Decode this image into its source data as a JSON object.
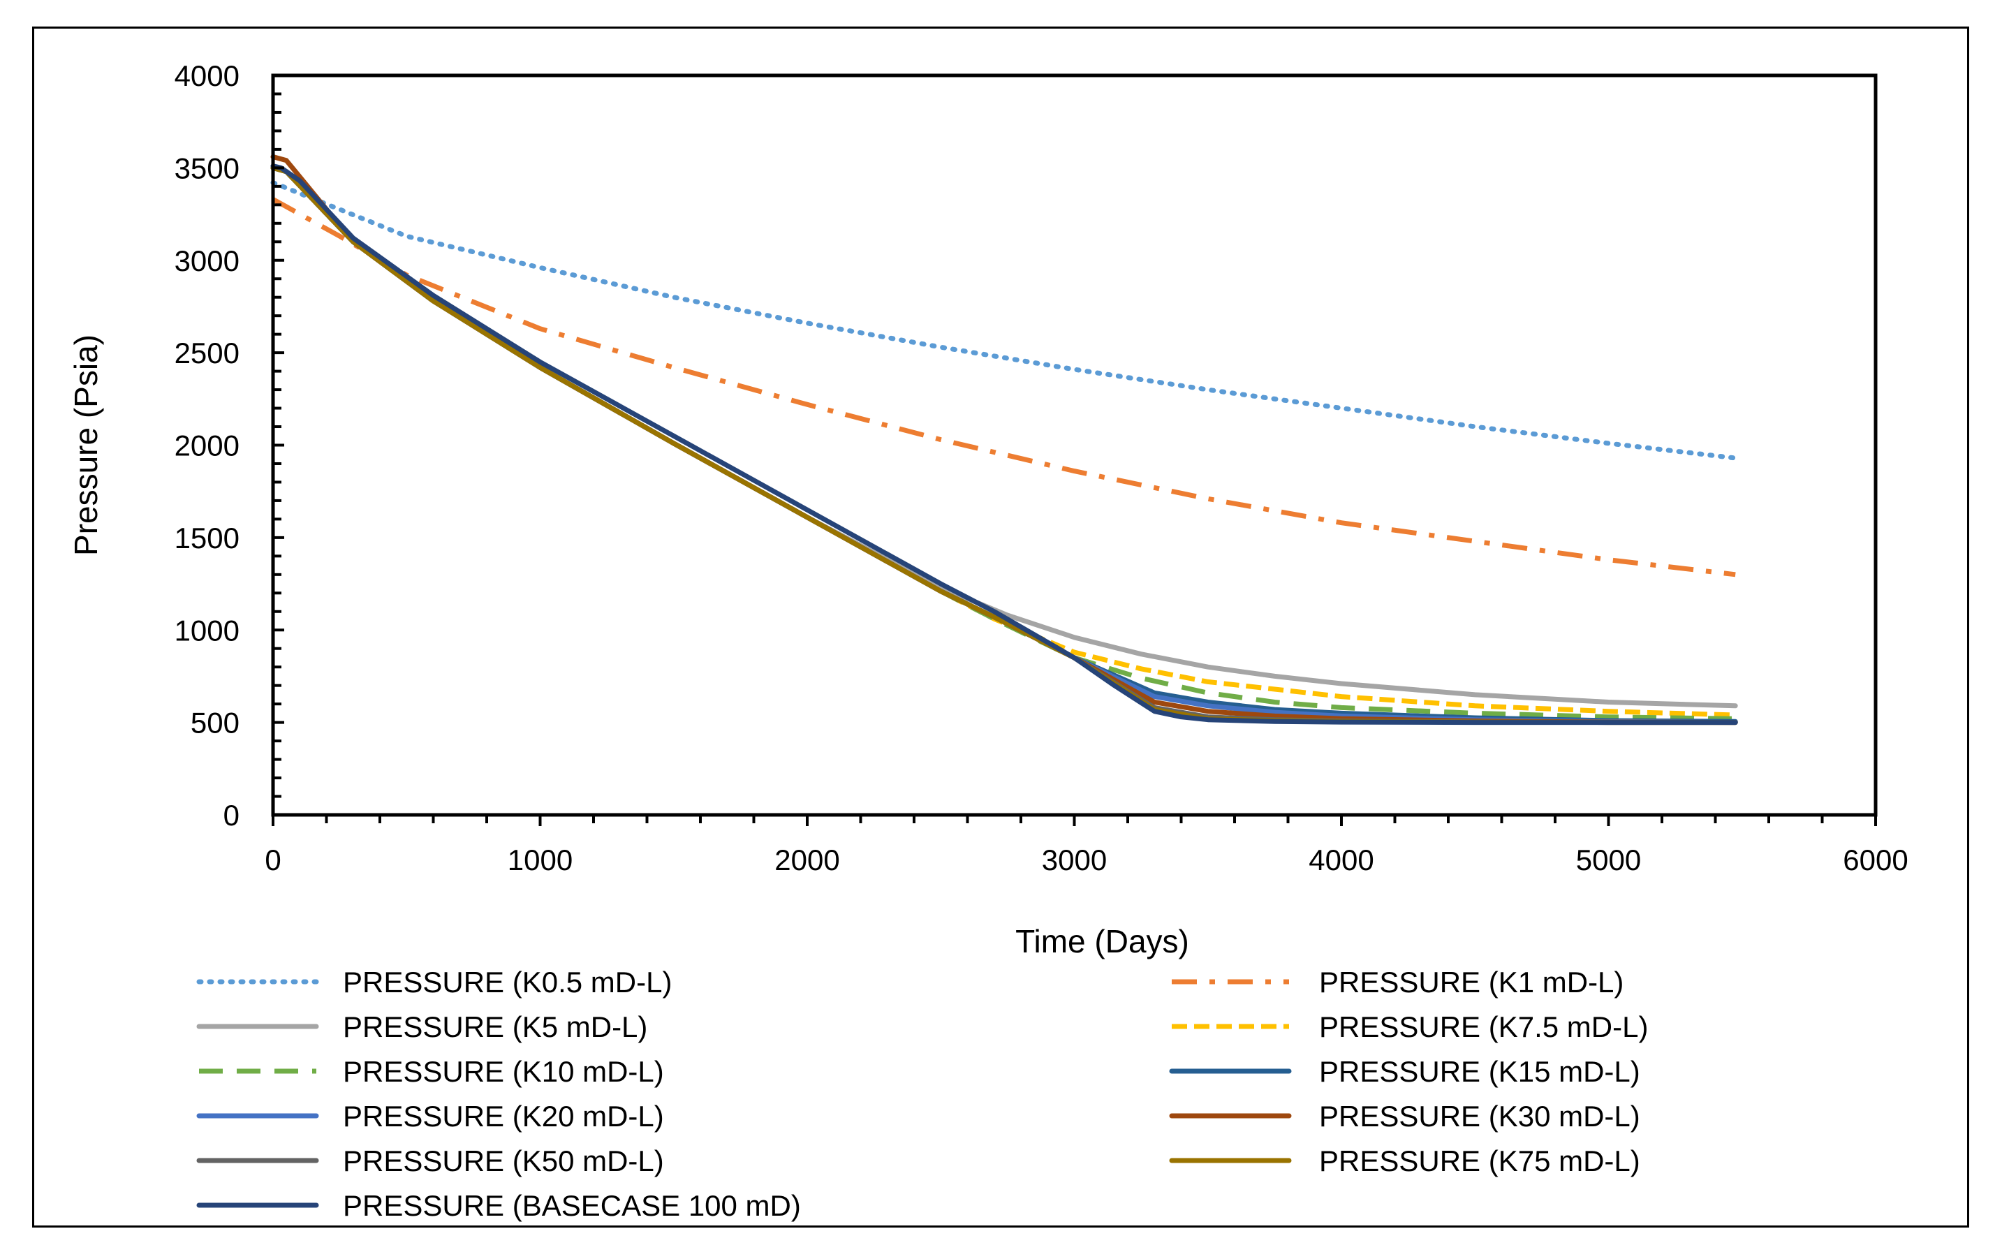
{
  "chart_data": {
    "type": "line",
    "title": "",
    "xlabel": "Time (Days)",
    "ylabel": "Pressure (Psia)",
    "xlim": [
      0,
      6000
    ],
    "ylim": [
      0,
      4000
    ],
    "x_ticks": [
      "0",
      "1000",
      "2000",
      "3000",
      "4000",
      "5000",
      "6000"
    ],
    "y_ticks": [
      "0",
      "500",
      "1000",
      "1500",
      "2000",
      "2500",
      "3000",
      "3500",
      "4000"
    ],
    "grid": false,
    "legend_position": "bottom",
    "series": [
      {
        "name": "PRESSURE (K0.5 mD-L)",
        "color": "#5B9BD5",
        "style": "dotted",
        "x": [
          0,
          500,
          1000,
          1500,
          2000,
          2500,
          3000,
          3500,
          4000,
          4500,
          5000,
          5475
        ],
        "y": [
          3420,
          3130,
          2960,
          2800,
          2660,
          2530,
          2410,
          2300,
          2200,
          2100,
          2010,
          1930
        ]
      },
      {
        "name": "PRESSURE  (K1 mD-L)",
        "color": "#ED7D31",
        "style": "dashdot",
        "x": [
          0,
          250,
          500,
          1000,
          1500,
          2000,
          2500,
          3000,
          3500,
          4000,
          4500,
          5000,
          5475
        ],
        "y": [
          3330,
          3130,
          2920,
          2630,
          2420,
          2220,
          2030,
          1860,
          1710,
          1580,
          1480,
          1380,
          1300
        ]
      },
      {
        "name": "PRESSURE (K5 mD-L)",
        "color": "#A5A5A5",
        "style": "solid",
        "x": [
          0,
          50,
          300,
          600,
          1000,
          1500,
          2000,
          2500,
          2750,
          3000,
          3250,
          3500,
          3750,
          4000,
          4500,
          5000,
          5475
        ],
        "y": [
          3500,
          3480,
          3100,
          2780,
          2420,
          2010,
          1610,
          1230,
          1080,
          960,
          870,
          800,
          750,
          710,
          650,
          610,
          590
        ]
      },
      {
        "name": "PRESSURE (K7.5 mD-L)",
        "color": "#FFC000",
        "style": "dashed",
        "x": [
          0,
          50,
          300,
          600,
          1000,
          1500,
          2000,
          2500,
          2700,
          3000,
          3250,
          3500,
          3750,
          4000,
          4500,
          5000,
          5475
        ],
        "y": [
          3500,
          3480,
          3100,
          2780,
          2420,
          2010,
          1610,
          1210,
          1060,
          880,
          790,
          720,
          680,
          640,
          590,
          560,
          540
        ]
      },
      {
        "name": "PRESSURE (K10 mD-L)",
        "color": "#70AD47",
        "style": "longdash",
        "x": [
          0,
          50,
          300,
          600,
          1000,
          1500,
          2000,
          2500,
          2700,
          3000,
          3250,
          3500,
          3750,
          4000,
          4500,
          5000,
          5475
        ],
        "y": [
          3500,
          3480,
          3100,
          2780,
          2420,
          2010,
          1610,
          1210,
          1060,
          850,
          740,
          660,
          610,
          580,
          550,
          530,
          520
        ]
      },
      {
        "name": "PRESSURE (K15 mD-L)",
        "color": "#255E91",
        "style": "solid",
        "x": [
          0,
          50,
          300,
          600,
          1000,
          1500,
          2000,
          2500,
          2700,
          3000,
          3300,
          3500,
          3750,
          4000,
          4500,
          5000,
          5475
        ],
        "y": [
          3500,
          3480,
          3100,
          2780,
          2420,
          2010,
          1610,
          1210,
          1070,
          850,
          660,
          610,
          570,
          550,
          525,
          510,
          505
        ]
      },
      {
        "name": "PRESSURE (K20 mD-L)",
        "color": "#4472C4",
        "style": "solid",
        "x": [
          0,
          50,
          300,
          600,
          1000,
          1500,
          2000,
          2500,
          2700,
          3000,
          3300,
          3500,
          3750,
          4000,
          4500,
          5000,
          5475
        ],
        "y": [
          3500,
          3480,
          3100,
          2780,
          2420,
          2010,
          1610,
          1210,
          1070,
          850,
          640,
          590,
          555,
          535,
          515,
          505,
          500
        ]
      },
      {
        "name": "PRESSURE (K30 mD-L)",
        "color": "#9E480E",
        "style": "solid",
        "x": [
          0,
          50,
          300,
          600,
          1000,
          1500,
          2000,
          2500,
          2700,
          3000,
          3300,
          3500,
          3750,
          4000,
          4500,
          5000,
          5475
        ],
        "y": [
          3560,
          3540,
          3100,
          2780,
          2420,
          2010,
          1610,
          1210,
          1070,
          850,
          610,
          560,
          535,
          520,
          508,
          502,
          500
        ]
      },
      {
        "name": "PRESSURE (K50 mD-L)",
        "color": "#636363",
        "style": "solid",
        "x": [
          0,
          50,
          300,
          600,
          1000,
          1500,
          2000,
          2500,
          2700,
          3000,
          3300,
          3500,
          3750,
          4000,
          4500,
          5000,
          5475
        ],
        "y": [
          3500,
          3480,
          3100,
          2780,
          2420,
          2010,
          1610,
          1210,
          1070,
          850,
          580,
          530,
          515,
          508,
          503,
          500,
          500
        ]
      },
      {
        "name": "PRESSURE (K75 mD-L)",
        "color": "#997300",
        "style": "solid",
        "x": [
          0,
          50,
          300,
          600,
          1000,
          1500,
          2000,
          2500,
          2700,
          3000,
          3300,
          3500,
          3750,
          4000,
          4500,
          5000,
          5475
        ],
        "y": [
          3500,
          3480,
          3100,
          2780,
          2420,
          2010,
          1610,
          1210,
          1070,
          850,
          570,
          520,
          510,
          505,
          502,
          500,
          500
        ]
      },
      {
        "name": " PRESSURE (BASECASE 100 mD)",
        "color": "#264478",
        "style": "solid",
        "x": [
          0,
          30,
          100,
          300,
          600,
          1000,
          1500,
          2000,
          2500,
          2700,
          3000,
          3150,
          3300,
          3400,
          3500,
          3750,
          4000,
          4500,
          5000,
          5475
        ],
        "y": [
          3510,
          3500,
          3430,
          3120,
          2810,
          2450,
          2050,
          1650,
          1250,
          1100,
          850,
          700,
          560,
          530,
          515,
          505,
          502,
          500,
          500,
          500
        ]
      }
    ]
  }
}
